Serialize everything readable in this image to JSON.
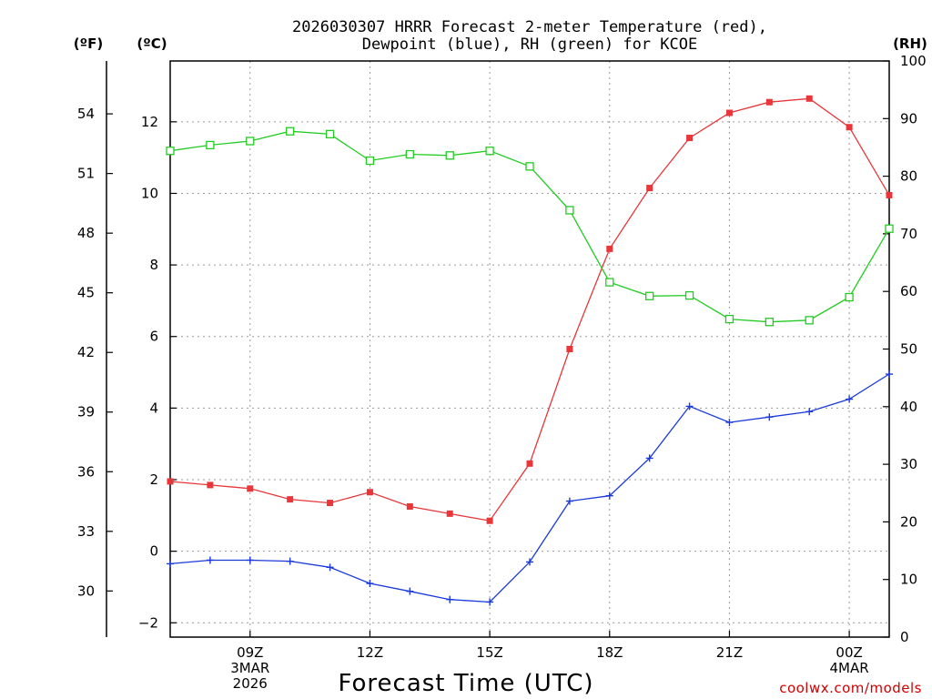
{
  "chart_data": {
    "type": "line",
    "title_line1": "2026030307 HRRR Forecast 2-meter Temperature (red),",
    "title_line2": "Dewpoint (blue), RH (green) for KCOE",
    "unit_f": "(ºF)",
    "unit_c": "(ºC)",
    "unit_rh": "(RH)",
    "xlabel": "Forecast Time (UTC)",
    "credit": "coolwx.com/models",
    "x_hours": [
      7,
      8,
      9,
      10,
      11,
      12,
      13,
      14,
      15,
      16,
      17,
      18,
      19,
      20,
      21,
      22,
      23,
      24,
      25
    ],
    "xlim": [
      7,
      25
    ],
    "x_ticks": [
      {
        "hour": 9,
        "lines": [
          "09Z",
          "3MAR",
          "2026"
        ]
      },
      {
        "hour": 12,
        "lines": [
          "12Z"
        ]
      },
      {
        "hour": 15,
        "lines": [
          "15Z"
        ]
      },
      {
        "hour": 18,
        "lines": [
          "18Z"
        ]
      },
      {
        "hour": 21,
        "lines": [
          "21Z"
        ]
      },
      {
        "hour": 24,
        "lines": [
          "00Z",
          "4MAR"
        ]
      }
    ],
    "ylim_c": [
      -2.4,
      13.7
    ],
    "y_ticks_c": [
      -2,
      0,
      2,
      4,
      6,
      8,
      10,
      12
    ],
    "y_labels_c": [
      "−2",
      "0",
      "2",
      "4",
      "6",
      "8",
      "10",
      "12"
    ],
    "y_ticks_f": [
      30,
      33,
      36,
      39,
      42,
      45,
      48,
      51,
      54
    ],
    "y_labels_f": [
      "30",
      "33",
      "36",
      "39",
      "42",
      "45",
      "48",
      "51",
      "54"
    ],
    "ylim_rh": [
      0,
      100
    ],
    "y_ticks_rh": [
      0,
      10,
      20,
      30,
      40,
      50,
      60,
      70,
      80,
      90,
      100
    ],
    "y_labels_rh": [
      "0",
      "10",
      "20",
      "30",
      "40",
      "50",
      "60",
      "70",
      "80",
      "90",
      "100"
    ],
    "series": [
      {
        "name": "Temperature",
        "axis": "c",
        "color": "#e8363a",
        "marker": "filled-square",
        "values": [
          1.95,
          1.85,
          1.75,
          1.45,
          1.35,
          1.65,
          1.25,
          1.05,
          0.85,
          2.45,
          5.65,
          8.45,
          10.15,
          11.55,
          12.25,
          12.55,
          12.65,
          11.85,
          9.95
        ]
      },
      {
        "name": "Dewpoint",
        "axis": "c",
        "color": "#1a3adc",
        "marker": "plus",
        "values": [
          -0.35,
          -0.25,
          -0.25,
          -0.28,
          -0.45,
          -0.9,
          -1.12,
          -1.35,
          -1.42,
          -0.3,
          1.4,
          1.55,
          2.6,
          4.05,
          3.6,
          3.75,
          3.9,
          4.25,
          4.95
        ]
      },
      {
        "name": "RH",
        "axis": "rh",
        "color": "#22cc22",
        "marker": "open-square",
        "values": [
          84.4,
          85.4,
          86.1,
          87.8,
          87.3,
          82.7,
          83.8,
          83.6,
          84.4,
          81.7,
          74.1,
          61.6,
          59.2,
          59.3,
          55.2,
          54.7,
          55.0,
          59.0,
          70.9
        ]
      }
    ]
  }
}
